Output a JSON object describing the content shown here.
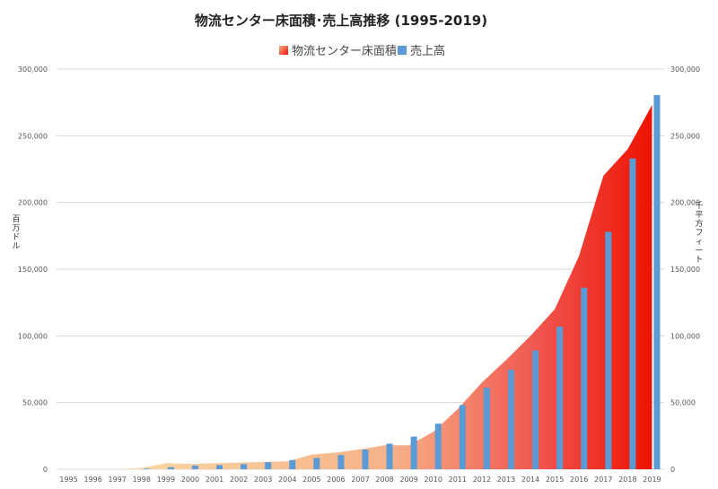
{
  "chart_data": {
    "type": "bar",
    "title": "物流センター床面積･売上高推移 (1995-2019)",
    "categories": [
      "1995",
      "1996",
      "1997",
      "1998",
      "1999",
      "2000",
      "2001",
      "2002",
      "2003",
      "2004",
      "2005",
      "2006",
      "2007",
      "2008",
      "2009",
      "2010",
      "2011",
      "2012",
      "2013",
      "2014",
      "2015",
      "2016",
      "2017",
      "2018",
      "2019"
    ],
    "ylabel_left": "百万ドル",
    "ylabel_right": "千平方フィート",
    "ylim": [
      0,
      300000
    ],
    "yticks": [
      "0",
      "50,000",
      "100,000",
      "150,000",
      "200,000",
      "250,000",
      "300,000"
    ],
    "grid": true,
    "legend_position": "top-center",
    "series": [
      {
        "name": "物流センター床面積",
        "type": "area",
        "axis": "right",
        "gradient": [
          "#f9e0a8",
          "#f7b28a",
          "#f0504a",
          "#ee1200"
        ],
        "values": [
          0,
          0,
          0,
          1000,
          4500,
          4000,
          4500,
          5000,
          5500,
          6000,
          11000,
          12500,
          15000,
          18000,
          18000,
          28000,
          45000,
          65000,
          82000,
          100000,
          120000,
          160000,
          220000,
          240000,
          273000
        ]
      },
      {
        "name": "売上高",
        "type": "bar",
        "axis": "left",
        "color": "#5b9bd5",
        "values": [
          0,
          0,
          0,
          500,
          1600,
          2800,
          3100,
          3900,
          5300,
          6900,
          8500,
          10700,
          14800,
          19200,
          24500,
          34200,
          48100,
          61100,
          74500,
          89000,
          107000,
          136000,
          178000,
          233000,
          280500
        ]
      }
    ]
  }
}
